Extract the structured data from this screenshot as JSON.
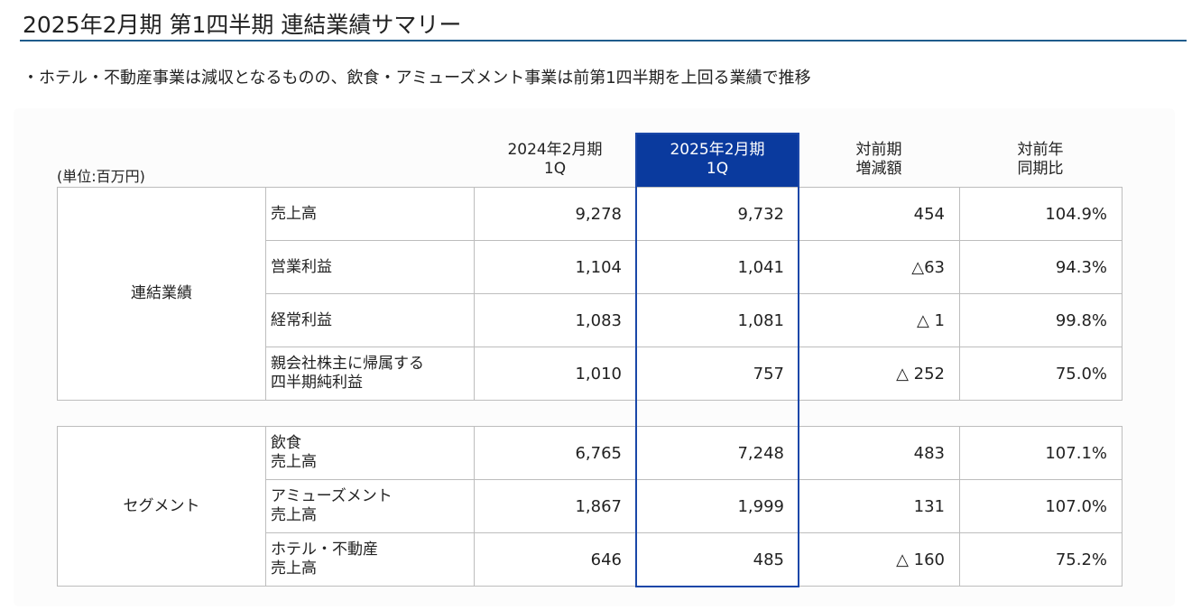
{
  "header": {
    "title": "2025年2月期 第1四半期 連結業績サマリー",
    "bullet": "・ホテル・不動産事業は減収となるものの、飲食・アミューズメント事業は前第1四半期を上回る業績で推移"
  },
  "table": {
    "unit": "(単位:百万円)",
    "columns": [
      "2024年2月期\n1Q",
      "2025年2月期\n1Q",
      "対前期\n増減額",
      "対前年\n同期比"
    ],
    "groups": [
      {
        "label": "連結業績",
        "rows": [
          {
            "item": "売上高",
            "cells": [
              "9,278",
              "9,732",
              "454",
              "104.9%"
            ]
          },
          {
            "item": "営業利益",
            "cells": [
              "1,104",
              "1,041",
              "△63",
              "94.3%"
            ]
          },
          {
            "item": "経常利益",
            "cells": [
              "1,083",
              "1,081",
              "△ 1",
              "99.8%"
            ]
          },
          {
            "item": "親会社株主に帰属する\n四半期純利益",
            "cells": [
              "1,010",
              "757",
              "△ 252",
              "75.0%"
            ]
          }
        ]
      },
      {
        "label": "セグメント",
        "rows": [
          {
            "item": "飲食\n売上高",
            "cells": [
              "6,765",
              "7,248",
              "483",
              "107.1%"
            ]
          },
          {
            "item": "アミューズメント\n売上高",
            "cells": [
              "1,867",
              "1,999",
              "131",
              "107.0%"
            ]
          },
          {
            "item": "ホテル・不動産\n売上高",
            "cells": [
              "646",
              "485",
              "△ 160",
              "75.2%"
            ]
          }
        ]
      }
    ]
  }
}
